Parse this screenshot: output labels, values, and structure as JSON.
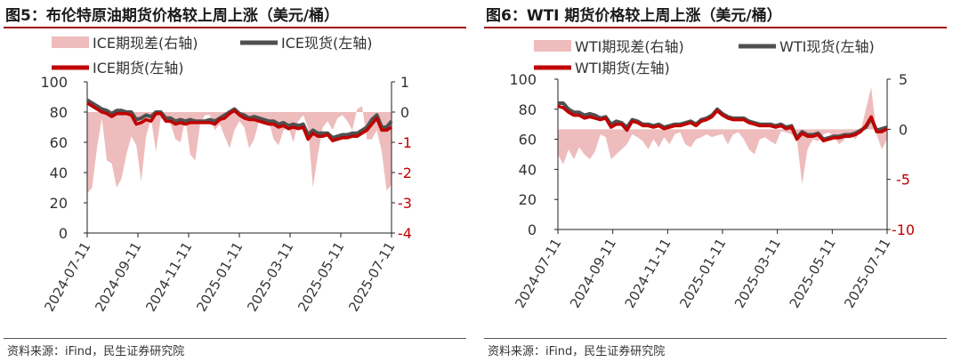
{
  "charts": [
    {
      "title": "图5：布伦特原油期货价格较上周上涨（美元/桶）",
      "source": "资料来源：iFind，民生证券研究院",
      "legend": {
        "spread": "ICE期现差(右轴)",
        "spot": "ICE现货(左轴)",
        "futures": "ICE期货(左轴)"
      }
    },
    {
      "title": "图6：WTI 期货价格较上周上涨（美元/桶）",
      "source": "资料来源：iFind，民生证券研究院",
      "legend": {
        "spread": "WTI期现差(右轴)",
        "spot": "WTI现货(左轴)",
        "futures": "WTI期货(左轴)"
      }
    }
  ],
  "colors": {
    "spread": "#eebcbc",
    "spot": "#505050",
    "futures": "#c00000",
    "right_axis": "#c00000",
    "left_axis": "#333333"
  },
  "chart_data": [
    {
      "type": "area",
      "title": "图5：布伦特原油期货价格较上周上涨（美元/桶）",
      "x_ticks": [
        "2024-07-11",
        "2024-09-11",
        "2024-11-11",
        "2025-01-11",
        "2025-03-11",
        "2025-05-11",
        "2025-07-11"
      ],
      "ylim_left": [
        0,
        100
      ],
      "left_ticks": [
        0,
        20,
        40,
        60,
        80,
        100
      ],
      "ylim_right": [
        -4,
        1
      ],
      "right_ticks": [
        -4,
        -3,
        -2,
        -1,
        0,
        1
      ],
      "series": [
        {
          "name": "ICE期现差(右轴)",
          "axis": "right",
          "kind": "area",
          "values": [
            -2.7,
            -2.5,
            -1.2,
            -0.2,
            -1.6,
            -1.7,
            -2.5,
            -2.2,
            -1.4,
            -0.8,
            -1.1,
            -2.3,
            -0.8,
            -0.2,
            -1.3,
            -0.2,
            -0.3,
            -0.4,
            -0.9,
            -1.0,
            -0.2,
            -1.4,
            -1.6,
            -0.4,
            -0.1,
            -0.1,
            -0.6,
            -0.4,
            -0.8,
            -1.2,
            -0.6,
            -0.3,
            -0.5,
            -1.2,
            -0.9,
            -0.3,
            -0.4,
            -0.3,
            -0.9,
            -1.1,
            -0.6,
            -0.5,
            -1.0,
            -0.3,
            -0.1,
            -0.5,
            -2.5,
            -1.4,
            -0.5,
            -0.3,
            -0.6,
            -0.2,
            -0.1,
            -0.3,
            -0.6,
            0.1,
            0.2,
            -0.9,
            -0.9,
            -0.6,
            -1.3,
            -2.6,
            -2.4
          ]
        },
        {
          "name": "ICE现货(左轴)",
          "axis": "left",
          "kind": "line",
          "values": [
            88,
            86,
            84,
            82,
            81,
            79,
            81,
            81,
            80,
            80,
            75,
            76,
            78,
            77,
            80,
            80,
            76,
            76,
            74,
            75,
            74,
            75,
            74,
            74,
            74,
            75,
            74,
            76,
            78,
            80,
            82,
            79,
            78,
            76,
            77,
            76,
            75,
            74,
            74,
            72,
            73,
            71,
            72,
            71,
            72,
            65,
            68,
            66,
            66,
            66,
            63,
            64,
            65,
            65,
            66,
            66,
            68,
            70,
            75,
            78,
            70,
            70,
            74
          ]
        },
        {
          "name": "ICE期货(左轴)",
          "axis": "left",
          "kind": "line",
          "values": [
            86,
            84,
            82,
            80,
            79,
            77,
            79,
            79,
            79,
            78,
            72,
            73,
            75,
            74,
            79,
            79,
            74,
            74,
            72,
            73,
            72,
            73,
            73,
            73,
            73,
            73,
            72,
            75,
            76,
            79,
            81,
            78,
            76,
            75,
            75,
            74,
            73,
            72,
            72,
            70,
            71,
            69,
            70,
            69,
            70,
            62,
            66,
            64,
            64,
            65,
            61,
            62,
            63,
            63,
            64,
            64,
            66,
            68,
            72,
            76,
            68,
            68,
            70
          ]
        }
      ]
    },
    {
      "type": "area",
      "title": "图6：WTI 期货价格较上周上涨（美元/桶）",
      "x_ticks": [
        "2024-07-11",
        "2024-09-11",
        "2024-11-11",
        "2025-01-11",
        "2025-03-11",
        "2025-05-11",
        "2025-07-11"
      ],
      "ylim_left": [
        0,
        100
      ],
      "left_ticks": [
        0,
        20,
        40,
        60,
        80,
        100
      ],
      "ylim_right": [
        -10,
        5
      ],
      "right_ticks": [
        -10,
        -5,
        0,
        5
      ],
      "series": [
        {
          "name": "WTI期现差(右轴)",
          "axis": "right",
          "kind": "area",
          "values": [
            -2.5,
            -3.5,
            -2.0,
            -3.0,
            -1.8,
            -2.5,
            -3.0,
            -2.2,
            -0.5,
            -0.8,
            -3.0,
            -2.5,
            -2.0,
            -1.5,
            -0.5,
            -0.8,
            -1.2,
            -2.0,
            -1.0,
            -1.8,
            -0.8,
            -1.5,
            -0.5,
            -0.3,
            -1.5,
            -1.8,
            -1.0,
            -0.8,
            -0.5,
            -0.8,
            -0.6,
            -0.5,
            -1.5,
            -0.5,
            -0.3,
            -1.0,
            -2.0,
            -2.5,
            -1.0,
            -0.8,
            -1.2,
            -1.5,
            -0.2,
            -0.3,
            -0.5,
            -1.0,
            -5.5,
            -2.0,
            -1.0,
            -1.2,
            -0.5,
            -0.3,
            -0.8,
            -1.5,
            -1.0,
            -0.5,
            -1.0,
            -0.2,
            2.0,
            4.2,
            -0.5,
            -2.0,
            -1.0
          ]
        },
        {
          "name": "WTI现货(左轴)",
          "axis": "left",
          "kind": "line",
          "values": [
            84,
            84,
            80,
            78,
            78,
            76,
            77,
            76,
            74,
            75,
            70,
            72,
            71,
            68,
            73,
            72,
            70,
            70,
            69,
            70,
            68,
            69,
            70,
            70,
            71,
            72,
            70,
            73,
            74,
            76,
            80,
            77,
            75,
            74,
            74,
            74,
            72,
            71,
            70,
            70,
            70,
            69,
            70,
            68,
            69,
            61,
            65,
            63,
            63,
            64,
            60,
            61,
            62,
            62,
            63,
            63,
            64,
            66,
            68,
            74,
            66,
            67,
            68
          ]
        },
        {
          "name": "WTI期货(左轴)",
          "axis": "left",
          "kind": "line",
          "values": [
            82,
            81,
            78,
            76,
            76,
            74,
            75,
            74,
            73,
            74,
            68,
            70,
            70,
            66,
            72,
            71,
            69,
            69,
            68,
            69,
            67,
            68,
            69,
            69,
            70,
            71,
            69,
            72,
            73,
            75,
            79,
            76,
            74,
            73,
            73,
            73,
            71,
            70,
            69,
            69,
            69,
            68,
            69,
            67,
            68,
            60,
            64,
            62,
            62,
            63,
            59,
            60,
            61,
            61,
            62,
            62,
            63,
            65,
            69,
            75,
            65,
            65,
            67
          ]
        }
      ]
    }
  ]
}
